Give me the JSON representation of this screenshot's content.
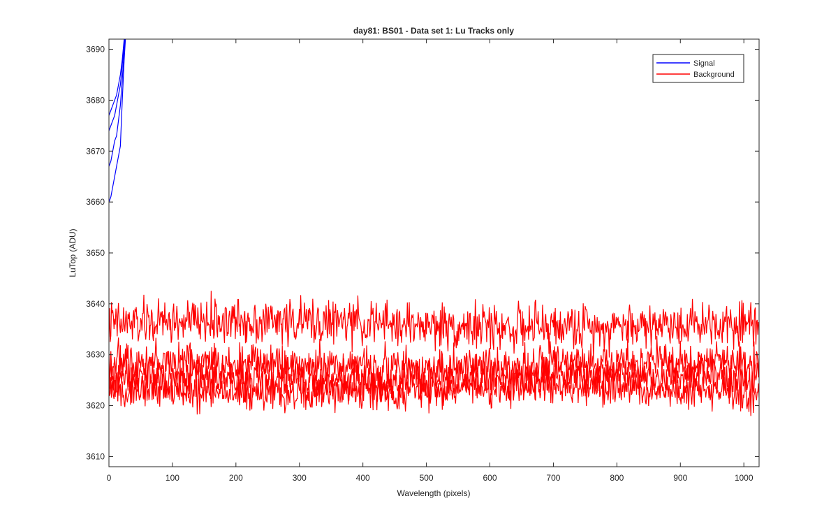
{
  "chart_data": {
    "type": "line",
    "title": "day81: BS01 - Data set 1: Lu Tracks only",
    "xlabel": "Wavelength (pixels)",
    "ylabel": "LuTop (ADU)",
    "xlim": [
      0,
      1024
    ],
    "ylim": [
      3608,
      3692
    ],
    "xticks": [
      0,
      100,
      200,
      300,
      400,
      500,
      600,
      700,
      800,
      900,
      1000
    ],
    "yticks": [
      3610,
      3620,
      3630,
      3640,
      3650,
      3660,
      3670,
      3680,
      3690
    ],
    "grid": false,
    "legend_position": "top-right",
    "series": [
      {
        "name": "Signal",
        "color": "#0000ff",
        "traces": [
          {
            "x": [
              0,
              3,
              6,
              9,
              12,
              15,
              18,
              21,
              24,
              27
            ],
            "y": [
              3660,
              3661,
              3663,
              3665,
              3667,
              3669,
              3671,
              3680,
              3688,
              3694
            ]
          },
          {
            "x": [
              0,
              3,
              6,
              9,
              12,
              15,
              18,
              21,
              24,
              27
            ],
            "y": [
              3667,
              3668,
              3670,
              3672,
              3673,
              3676,
              3679,
              3684,
              3690,
              3694
            ]
          },
          {
            "x": [
              0,
              3,
              6,
              9,
              12,
              15,
              18,
              21,
              24,
              27
            ],
            "y": [
              3674,
              3675,
              3676,
              3677,
              3679,
              3681,
              3683,
              3687,
              3691,
              3694
            ]
          },
          {
            "x": [
              0,
              3,
              6,
              9,
              12,
              15,
              18,
              21,
              24,
              27
            ],
            "y": [
              3677,
              3678,
              3679,
              3680,
              3681,
              3683,
              3685,
              3688,
              3692,
              3694
            ]
          }
        ]
      },
      {
        "name": "Background",
        "color": "#ff0000",
        "traces": [
          {
            "x_start": 0,
            "x_end": 1024,
            "mean": 3636,
            "amplitude": 2.2
          },
          {
            "x_start": 0,
            "x_end": 1024,
            "mean": 3628,
            "amplitude": 2.0
          },
          {
            "x_start": 0,
            "x_end": 1024,
            "mean": 3625.5,
            "amplitude": 2.0
          },
          {
            "x_start": 0,
            "x_end": 1024,
            "mean": 3623,
            "amplitude": 1.8
          }
        ]
      }
    ]
  }
}
